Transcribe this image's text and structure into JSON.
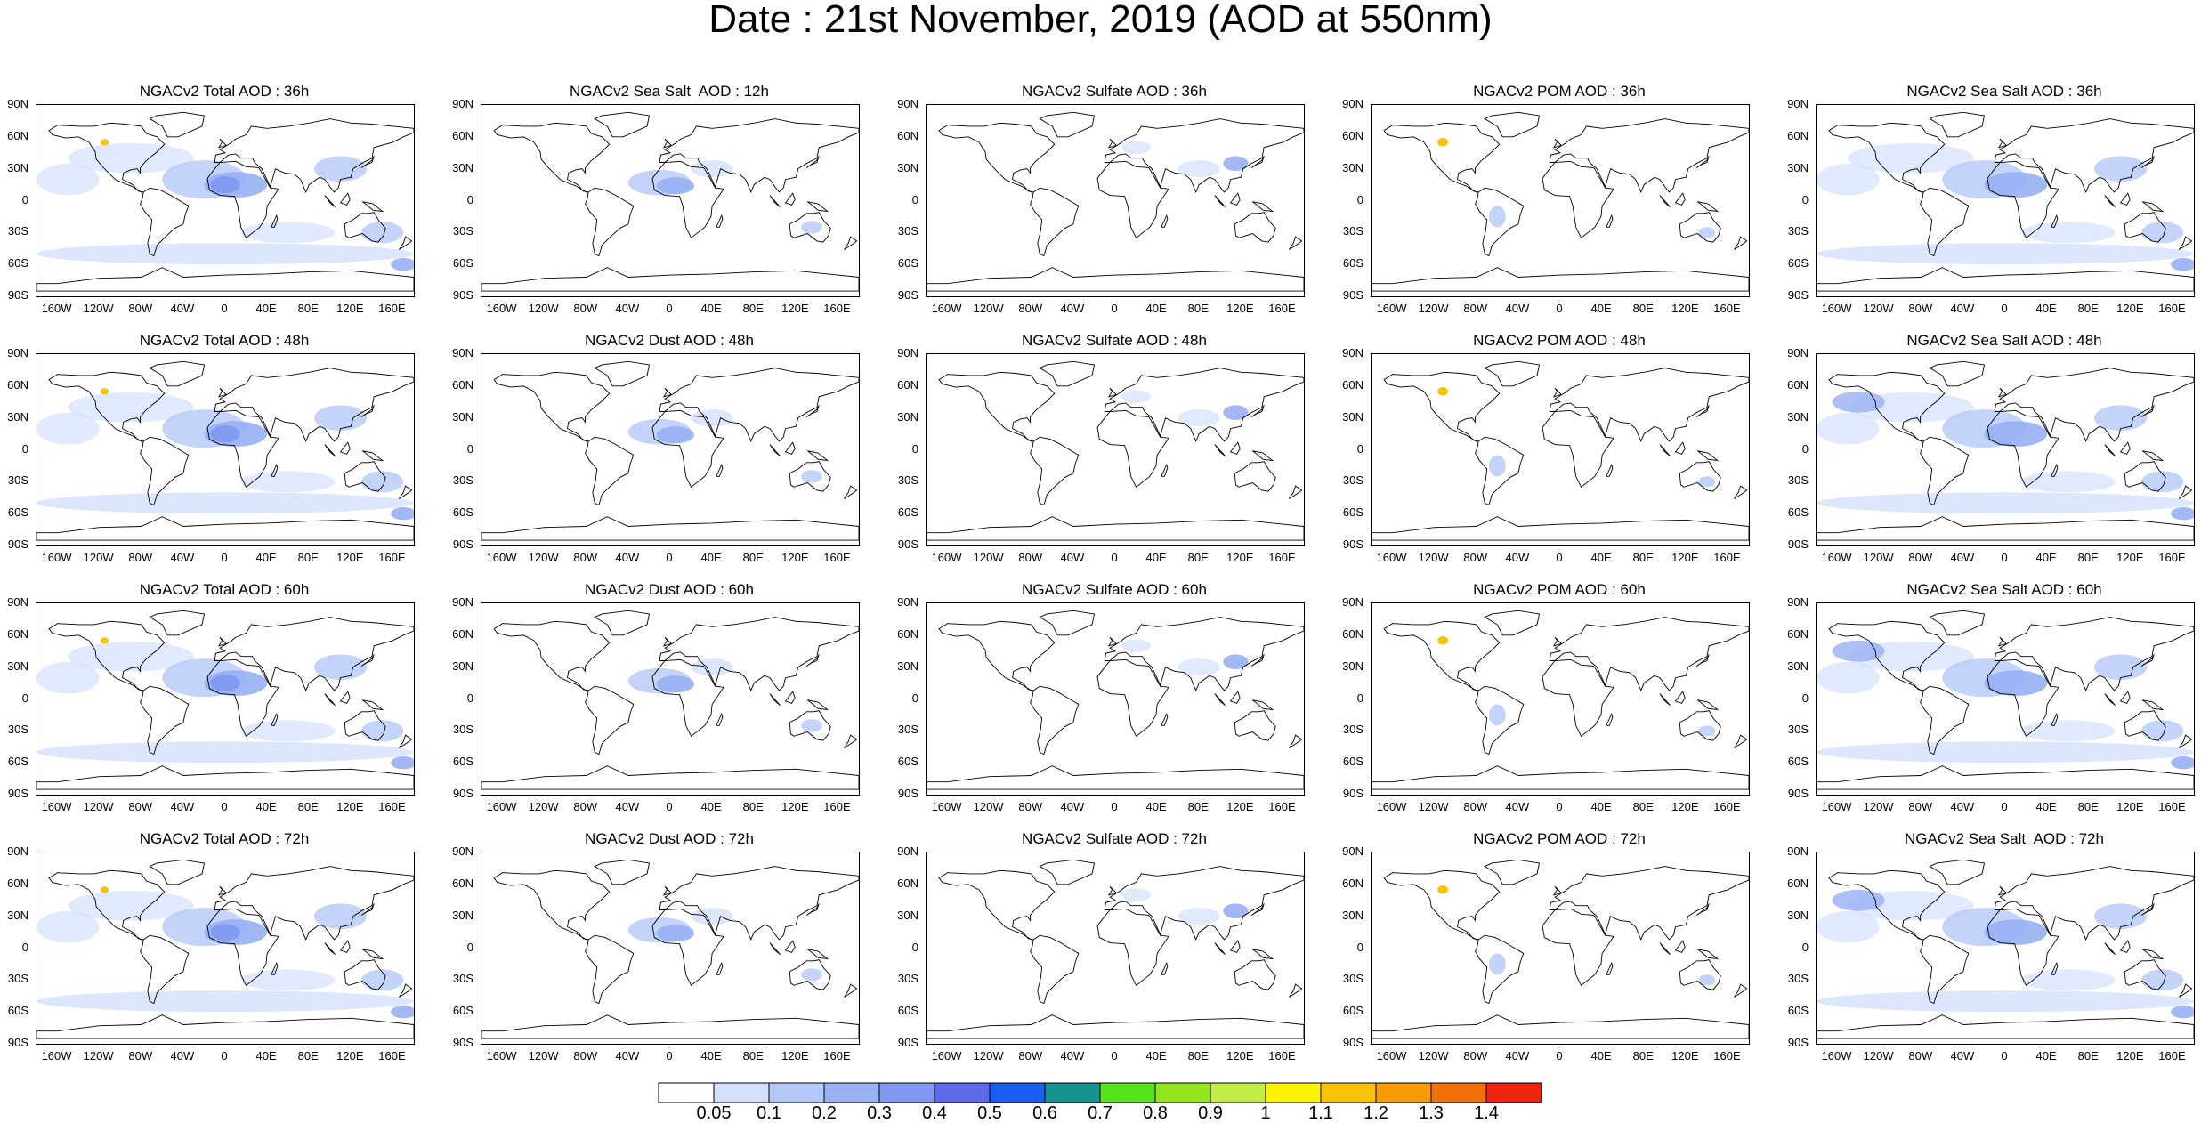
{
  "title": "Date : 21st November, 2019 (AOD at 550nm)",
  "panels": [
    [
      "NGACv2 Total AOD : 36h",
      "NGACv2 Sea Salt  AOD : 12h",
      "NGACv2 Sulfate AOD : 36h",
      "NGACv2 POM AOD : 36h",
      "NGACv2 Sea Salt AOD : 36h"
    ],
    [
      "NGACv2 Total AOD : 48h",
      "NGACv2 Dust AOD : 48h",
      "NGACv2 Sulfate AOD : 48h",
      "NGACv2 POM AOD : 48h",
      "NGACv2 Sea Salt AOD : 48h"
    ],
    [
      "NGACv2 Total AOD : 60h",
      "NGACv2 Dust AOD : 60h",
      "NGACv2 Sulfate AOD : 60h",
      "NGACv2 POM AOD : 60h",
      "NGACv2 Sea Salt AOD : 60h"
    ],
    [
      "NGACv2 Total AOD : 72h",
      "NGACv2 Dust AOD : 72h",
      "NGACv2 Sulfate AOD : 72h",
      "NGACv2 POM AOD : 72h",
      "NGACv2 Sea Salt  AOD : 72h"
    ]
  ],
  "lat_ticks": [
    "90N",
    "60N",
    "30N",
    "0",
    "30S",
    "60S",
    "90S"
  ],
  "lon_ticks": [
    "160W",
    "120W",
    "80W",
    "40W",
    "0",
    "40E",
    "80E",
    "120E",
    "160E"
  ],
  "colorbar": {
    "labels": [
      "0.05",
      "0.1",
      "0.2",
      "0.3",
      "0.4",
      "0.5",
      "0.6",
      "0.7",
      "0.8",
      "0.9",
      "1",
      "1.1",
      "1.2",
      "1.3",
      "1.4"
    ],
    "colors": [
      "#ffffff",
      "#d3e0fc",
      "#b4c8f7",
      "#98b0f4",
      "#7f97ef",
      "#5d69e8",
      "#1b5df2",
      "#16928f",
      "#57e31b",
      "#92e61d",
      "#c1ec46",
      "#fff304",
      "#f8c207",
      "#f69b05",
      "#f1700a",
      "#ee2410"
    ]
  }
}
